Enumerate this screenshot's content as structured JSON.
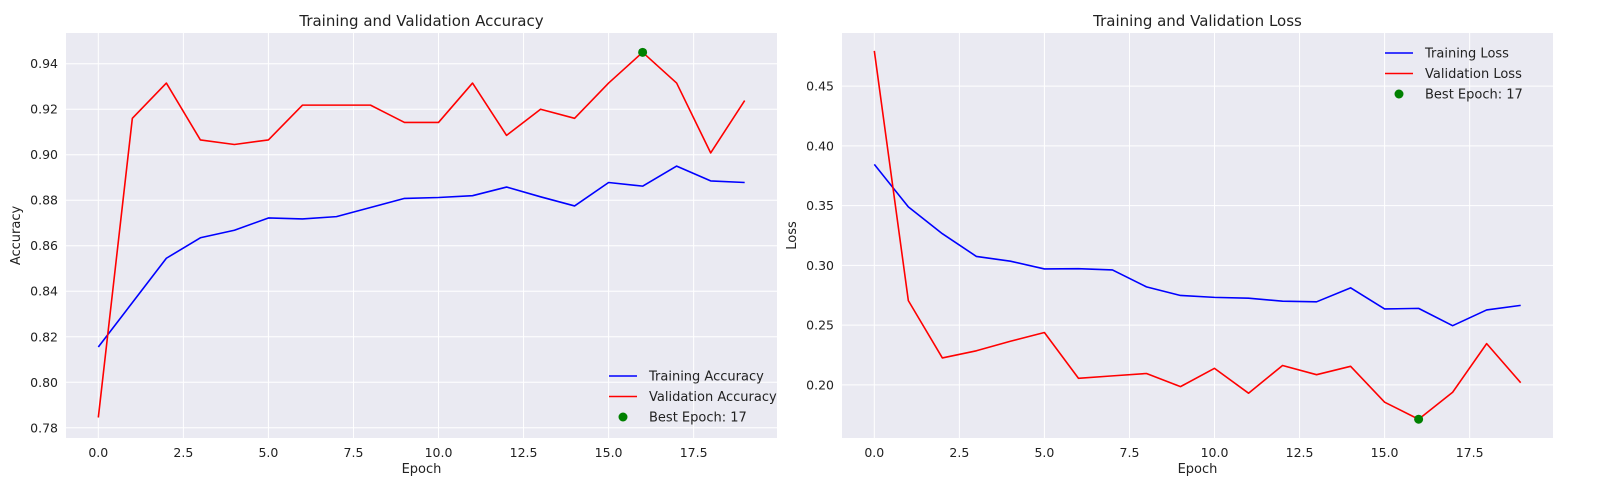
{
  "chart_data": [
    {
      "type": "line",
      "title": "Training and Validation Accuracy",
      "xlabel": "Epoch",
      "ylabel": "Accuracy",
      "xlim": [
        -0.95,
        19.95
      ],
      "ylim": [
        0.7755,
        0.9535
      ],
      "xticks": [
        0,
        2.5,
        5,
        7.5,
        10,
        12.5,
        15,
        17.5
      ],
      "xtick_labels": [
        "0.0",
        "2.5",
        "5.0",
        "7.5",
        "10.0",
        "12.5",
        "15.0",
        "17.5"
      ],
      "yticks": [
        0.78,
        0.8,
        0.82,
        0.84,
        0.86,
        0.88,
        0.9,
        0.92,
        0.94
      ],
      "ytick_labels": [
        "0.78",
        "0.80",
        "0.82",
        "0.84",
        "0.86",
        "0.88",
        "0.90",
        "0.92",
        "0.94"
      ],
      "grid": true,
      "legend_position": "bottom-right",
      "x": [
        0,
        1,
        2,
        3,
        4,
        5,
        6,
        7,
        8,
        9,
        10,
        11,
        12,
        13,
        14,
        15,
        16,
        17,
        18,
        19
      ],
      "series": [
        {
          "name": "Training Accuracy",
          "color": "#0000ff",
          "values": [
            0.8155,
            0.835,
            0.8545,
            0.8635,
            0.8668,
            0.8722,
            0.8718,
            0.8728,
            0.8768,
            0.8808,
            0.8812,
            0.882,
            0.8858,
            0.8815,
            0.8775,
            0.8878,
            0.8862,
            0.895,
            0.8885,
            0.8878
          ]
        },
        {
          "name": "Validation Accuracy",
          "color": "#ff0000",
          "values": [
            0.7845,
            0.916,
            0.9315,
            0.9065,
            0.9045,
            0.9065,
            0.9218,
            0.9218,
            0.9218,
            0.9142,
            0.9142,
            0.9315,
            0.9085,
            0.92,
            0.916,
            0.9315,
            0.945,
            0.9315,
            0.9008,
            0.9238
          ]
        }
      ],
      "marker": {
        "name": "Best Epoch: 17",
        "color": "#008000",
        "x": 16,
        "y": 0.945
      }
    },
    {
      "type": "line",
      "title": "Training and Validation Loss",
      "xlabel": "Epoch",
      "ylabel": "Loss",
      "xlim": [
        -0.95,
        19.95
      ],
      "ylim": [
        0.1555,
        0.4945
      ],
      "xticks": [
        0,
        2.5,
        5,
        7.5,
        10,
        12.5,
        15,
        17.5
      ],
      "xtick_labels": [
        "0.0",
        "2.5",
        "5.0",
        "7.5",
        "10.0",
        "12.5",
        "15.0",
        "17.5"
      ],
      "yticks": [
        0.2,
        0.25,
        0.3,
        0.35,
        0.4,
        0.45
      ],
      "ytick_labels": [
        "0.20",
        "0.25",
        "0.30",
        "0.35",
        "0.40",
        "0.45"
      ],
      "grid": true,
      "legend_position": "top-right",
      "x": [
        0,
        1,
        2,
        3,
        4,
        5,
        6,
        7,
        8,
        9,
        10,
        11,
        12,
        13,
        14,
        15,
        16,
        17,
        18,
        19
      ],
      "series": [
        {
          "name": "Training Loss",
          "color": "#0000ff",
          "values": [
            0.3845,
            0.349,
            0.3265,
            0.3075,
            0.3035,
            0.297,
            0.2972,
            0.2962,
            0.282,
            0.2748,
            0.2732,
            0.2725,
            0.27,
            0.2695,
            0.2812,
            0.2635,
            0.264,
            0.2495,
            0.2627,
            0.2665
          ]
        },
        {
          "name": "Validation Loss",
          "color": "#ff0000",
          "values": [
            0.4795,
            0.2705,
            0.2225,
            0.2285,
            0.2365,
            0.2438,
            0.2055,
            0.2075,
            0.2095,
            0.1985,
            0.2138,
            0.193,
            0.2162,
            0.2085,
            0.2155,
            0.1855,
            0.1712,
            0.1938,
            0.2345,
            0.2018
          ]
        }
      ],
      "marker": {
        "name": "Best Epoch: 17",
        "color": "#008000",
        "x": 16,
        "y": 0.1712
      }
    }
  ]
}
